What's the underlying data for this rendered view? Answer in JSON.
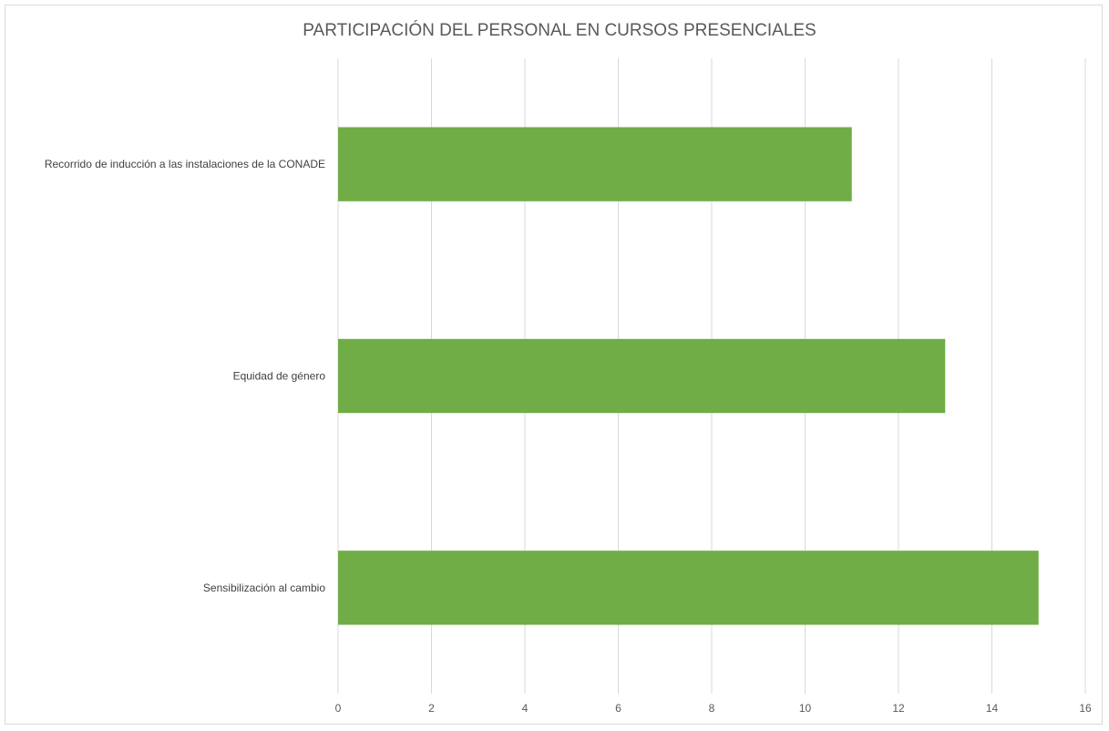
{
  "chart_data": {
    "type": "bar",
    "orientation": "horizontal",
    "title": "PARTICIPACIÓN DEL PERSONAL EN CURSOS PRESENCIALES",
    "categories": [
      "Recorrido de inducción a las instalaciones de la CONADE",
      "Equidad de género",
      "Sensibilización al cambio"
    ],
    "values": [
      11,
      13,
      15
    ],
    "xlim": [
      0,
      16
    ],
    "xticks": [
      "0",
      "2",
      "4",
      "6",
      "8",
      "10",
      "12",
      "14",
      "16"
    ],
    "grid": true,
    "legend": "none",
    "bar_color": "#70ad47"
  }
}
